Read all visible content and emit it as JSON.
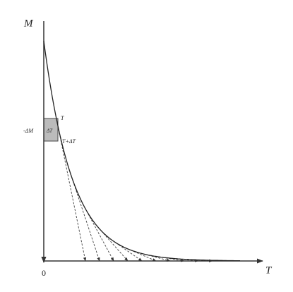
{
  "axes": {
    "y_label": "M",
    "x_label": "T",
    "origin": "0"
  },
  "annotations": {
    "t_label": "T",
    "t_plus_label": "T+ΔT",
    "delta_m": "-ΔM",
    "delta_t": "ΔT"
  }
}
